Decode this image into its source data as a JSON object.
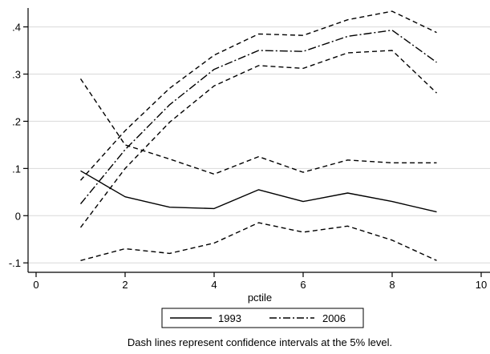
{
  "chart_data": {
    "type": "line",
    "title": "",
    "xlabel": "pctile",
    "ylabel": "",
    "xlim": [
      0,
      10
    ],
    "ylim": [
      -0.12,
      0.44
    ],
    "xticks": [
      {
        "value": 0,
        "label": "0"
      },
      {
        "value": 2,
        "label": "2"
      },
      {
        "value": 4,
        "label": "4"
      },
      {
        "value": 6,
        "label": "6"
      },
      {
        "value": 8,
        "label": "8"
      },
      {
        "value": 10,
        "label": "10"
      }
    ],
    "yticks": [
      {
        "value": -0.1,
        "label": "-.1"
      },
      {
        "value": 0,
        "label": "0"
      },
      {
        "value": 0.1,
        "label": ".1"
      },
      {
        "value": 0.2,
        "label": ".2"
      },
      {
        "value": 0.3,
        "label": ".3"
      },
      {
        "value": 0.4,
        "label": ".4"
      }
    ],
    "grid": true,
    "x": [
      1,
      2,
      3,
      4,
      5,
      6,
      7,
      8,
      9
    ],
    "series": [
      {
        "name": "1993",
        "style": "solid",
        "values": [
          0.095,
          0.04,
          0.018,
          0.015,
          0.055,
          0.03,
          0.048,
          0.03,
          0.008
        ]
      },
      {
        "name": "1993 upper CI",
        "style": "dash",
        "values": [
          0.29,
          0.15,
          0.12,
          0.088,
          0.125,
          0.092,
          0.118,
          0.112,
          0.112
        ]
      },
      {
        "name": "1993 lower CI",
        "style": "dash",
        "values": [
          -0.095,
          -0.07,
          -0.08,
          -0.058,
          -0.015,
          -0.035,
          -0.022,
          -0.052,
          -0.095
        ]
      },
      {
        "name": "2006",
        "style": "dashdot",
        "values": [
          0.025,
          0.14,
          0.235,
          0.31,
          0.35,
          0.348,
          0.38,
          0.393,
          0.325
        ]
      },
      {
        "name": "2006 upper CI",
        "style": "dash",
        "values": [
          0.075,
          0.18,
          0.27,
          0.34,
          0.385,
          0.382,
          0.415,
          0.433,
          0.388
        ]
      },
      {
        "name": "2006 lower CI",
        "style": "dash",
        "values": [
          -0.025,
          0.1,
          0.198,
          0.275,
          0.318,
          0.312,
          0.345,
          0.35,
          0.26
        ]
      }
    ],
    "legend": {
      "placement": "bottom",
      "entries": [
        {
          "label": "1993",
          "style": "solid"
        },
        {
          "label": "2006",
          "style": "dashdot"
        }
      ]
    },
    "note": "Dash lines represent confidence intervals at the 5% level.",
    "colors": {
      "lines": "#000000",
      "grid": "#d9d9d9",
      "background": "#ffffff"
    }
  }
}
